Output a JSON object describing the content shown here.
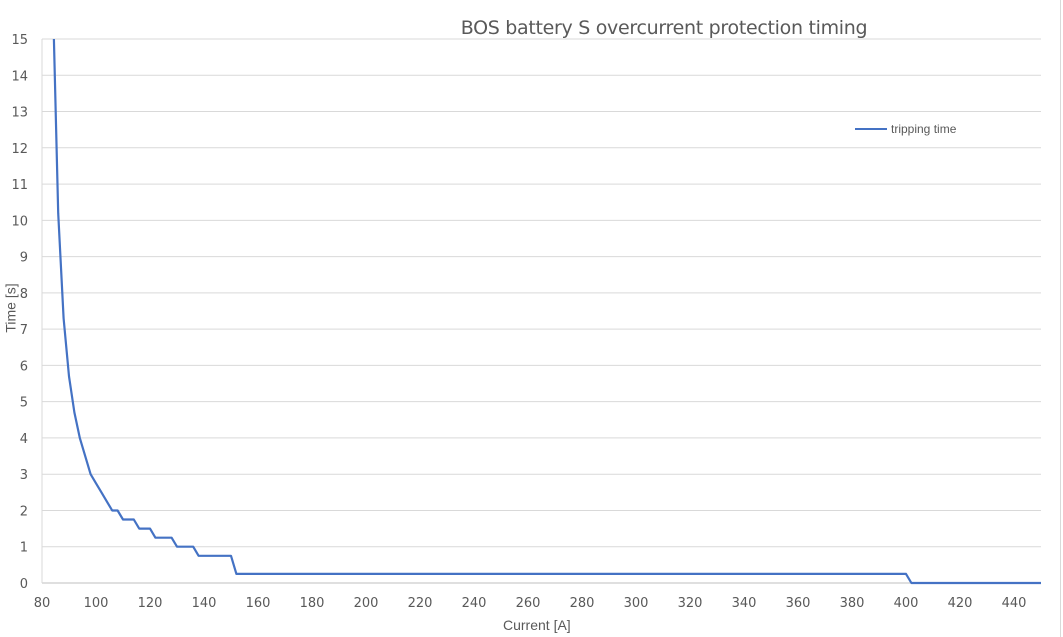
{
  "chart_data": {
    "type": "line",
    "title": "BOS battery S overcurrent protection timing",
    "xlabel": "Current [A]",
    "ylabel": "Time [s]",
    "xlim": [
      80,
      450
    ],
    "ylim": [
      0,
      15
    ],
    "x_ticks": [
      80,
      100,
      120,
      140,
      160,
      180,
      200,
      220,
      240,
      260,
      280,
      300,
      320,
      340,
      360,
      380,
      400,
      420,
      440
    ],
    "y_ticks": [
      0,
      1,
      2,
      3,
      4,
      5,
      6,
      7,
      8,
      9,
      10,
      11,
      12,
      13,
      14,
      15
    ],
    "grid": true,
    "legend_position": "upper right",
    "series": [
      {
        "name": "tripping time",
        "color": "#4472c4",
        "x": [
          84.4,
          86,
          88,
          90,
          92,
          94,
          96,
          98,
          100,
          102,
          104,
          106,
          108,
          110,
          114,
          116,
          120,
          122,
          128,
          130,
          136,
          138,
          150,
          152,
          400,
          402,
          450
        ],
        "y": [
          15,
          10.2,
          7.3,
          5.7,
          4.7,
          4.0,
          3.5,
          3.0,
          2.75,
          2.5,
          2.25,
          2.0,
          2.0,
          1.75,
          1.75,
          1.5,
          1.5,
          1.25,
          1.25,
          1.0,
          1.0,
          0.75,
          0.75,
          0.25,
          0.25,
          0,
          0
        ]
      }
    ]
  }
}
